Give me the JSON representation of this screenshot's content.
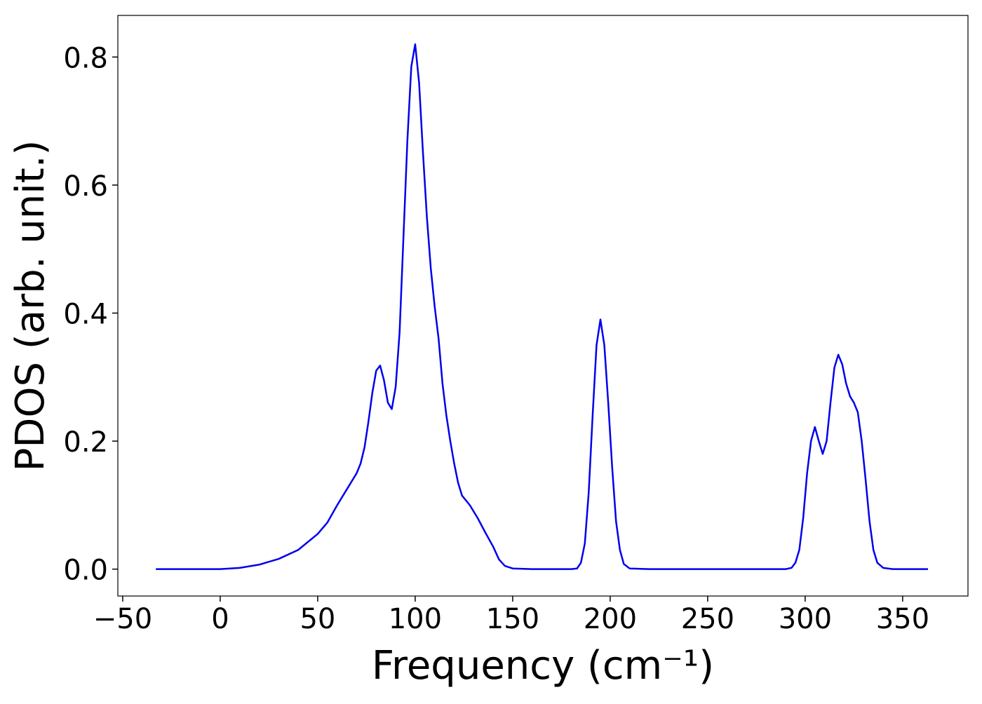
{
  "chart_data": {
    "type": "line",
    "xlabel": "Frequency (cm⁻¹)",
    "ylabel": "PDOS (arb. unit.)",
    "xlim": [
      -52.5,
      383.5
    ],
    "ylim": [
      -0.042,
      0.865
    ],
    "xticks": [
      {
        "value": -50,
        "label": "−50"
      },
      0,
      50,
      100,
      150,
      200,
      250,
      300,
      350
    ],
    "yticks": [
      {
        "value": 0,
        "label": "0.0"
      },
      0.2,
      0.4,
      0.6,
      0.8
    ],
    "x": [
      -33,
      -20,
      0,
      10,
      20,
      30,
      40,
      50,
      55,
      60,
      65,
      70,
      72,
      74,
      76,
      78,
      80,
      82,
      84,
      86,
      88,
      90,
      92,
      94,
      96,
      98,
      100,
      102,
      104,
      106,
      108,
      110,
      112,
      114,
      116,
      118,
      120,
      122,
      124,
      128,
      132,
      136,
      140,
      143,
      146,
      150,
      160,
      180,
      183,
      185,
      187,
      189,
      191,
      193,
      195,
      197,
      199,
      201,
      203,
      205,
      207,
      210,
      220,
      290,
      293,
      295,
      297,
      299,
      301,
      303,
      305,
      307,
      309,
      311,
      313,
      315,
      317,
      319,
      321,
      323,
      325,
      327,
      329,
      331,
      333,
      335,
      337,
      340,
      345,
      363
    ],
    "series": [
      {
        "name": "PDOS",
        "color": "#0000ee",
        "values": [
          0,
          0,
          0,
          0.002,
          0.007,
          0.016,
          0.03,
          0.055,
          0.073,
          0.1,
          0.125,
          0.15,
          0.165,
          0.19,
          0.23,
          0.275,
          0.31,
          0.318,
          0.295,
          0.26,
          0.25,
          0.285,
          0.37,
          0.52,
          0.67,
          0.785,
          0.82,
          0.76,
          0.65,
          0.55,
          0.47,
          0.41,
          0.36,
          0.29,
          0.24,
          0.2,
          0.165,
          0.135,
          0.115,
          0.1,
          0.08,
          0.057,
          0.035,
          0.015,
          0.005,
          0.001,
          0,
          0,
          0.001,
          0.01,
          0.04,
          0.12,
          0.24,
          0.35,
          0.39,
          0.35,
          0.26,
          0.16,
          0.075,
          0.03,
          0.008,
          0.001,
          0,
          0,
          0.002,
          0.01,
          0.03,
          0.08,
          0.15,
          0.2,
          0.222,
          0.2,
          0.18,
          0.2,
          0.26,
          0.315,
          0.335,
          0.32,
          0.29,
          0.27,
          0.26,
          0.245,
          0.2,
          0.14,
          0.075,
          0.03,
          0.01,
          0.002,
          0,
          0
        ]
      }
    ]
  }
}
